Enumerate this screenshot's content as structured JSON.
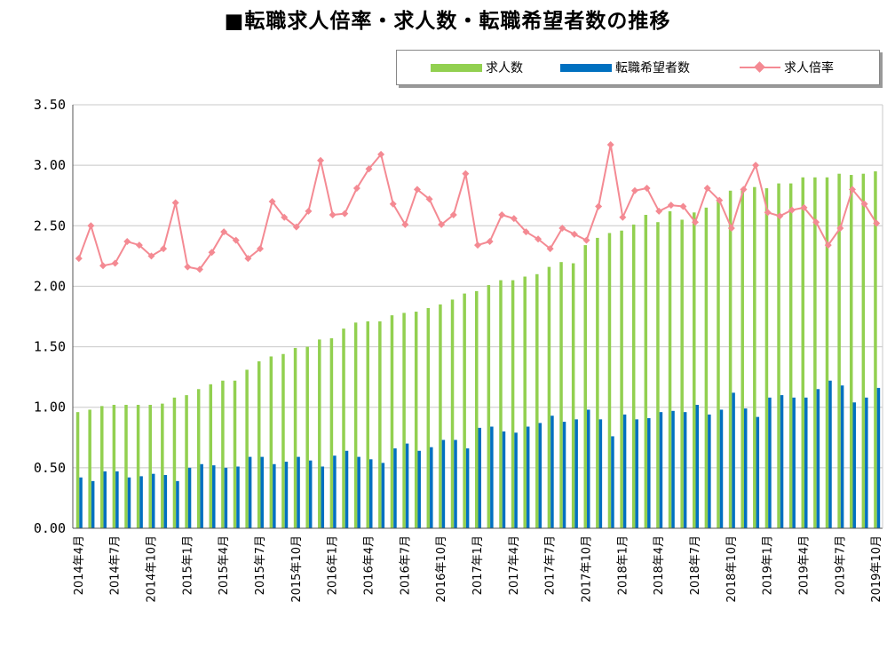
{
  "colors": {
    "job_openings": "#92d050",
    "job_seekers": "#0070c0",
    "ratio": "#f48a93"
  },
  "chart_data": {
    "type": "bar",
    "title": "■転職求人倍率・求人数・転職希望者数の推移",
    "xlabel": "",
    "ylabel": "",
    "ylim": [
      0,
      3.5
    ],
    "yticks": [
      "0.00",
      "0.50",
      "1.00",
      "1.50",
      "2.00",
      "2.50",
      "3.00",
      "3.50"
    ],
    "grid": true,
    "legend_position": "top-right",
    "categories": [
      "2014年4月",
      "2014年5月",
      "2014年6月",
      "2014年7月",
      "2014年8月",
      "2014年9月",
      "2014年10月",
      "2014年11月",
      "2014年12月",
      "2015年1月",
      "2015年2月",
      "2015年3月",
      "2015年4月",
      "2015年5月",
      "2015年6月",
      "2015年7月",
      "2015年8月",
      "2015年9月",
      "2015年10月",
      "2015年11月",
      "2015年12月",
      "2016年1月",
      "2016年2月",
      "2016年3月",
      "2016年4月",
      "2016年5月",
      "2016年6月",
      "2016年7月",
      "2016年8月",
      "2016年9月",
      "2016年10月",
      "2016年11月",
      "2016年12月",
      "2017年1月",
      "2017年2月",
      "2017年3月",
      "2017年4月",
      "2017年5月",
      "2017年6月",
      "2017年7月",
      "2017年8月",
      "2017年9月",
      "2017年10月",
      "2017年11月",
      "2017年12月",
      "2018年1月",
      "2018年2月",
      "2018年3月",
      "2018年4月",
      "2018年5月",
      "2018年6月",
      "2018年7月",
      "2018年8月",
      "2018年9月",
      "2018年10月",
      "2018年11月",
      "2018年12月",
      "2019年1月",
      "2019年2月",
      "2019年3月",
      "2019年4月",
      "2019年5月",
      "2019年6月",
      "2019年7月",
      "2019年8月",
      "2019年9月",
      "2019年10月"
    ],
    "tick_labels": [
      "2014年4月",
      "2014年7月",
      "2014年10月",
      "2015年1月",
      "2015年4月",
      "2015年7月",
      "2015年10月",
      "2016年1月",
      "2016年4月",
      "2016年7月",
      "2016年10月",
      "2017年1月",
      "2017年4月",
      "2017年7月",
      "2017年10月",
      "2018年1月",
      "2018年4月",
      "2018年7月",
      "2018年10月",
      "2019年1月",
      "2019年4月",
      "2019年7月",
      "2019年10月"
    ],
    "series": [
      {
        "name": "求人数",
        "type": "bar",
        "values": [
          0.96,
          0.98,
          1.01,
          1.02,
          1.02,
          1.02,
          1.02,
          1.03,
          1.08,
          1.1,
          1.15,
          1.19,
          1.22,
          1.22,
          1.31,
          1.38,
          1.42,
          1.44,
          1.49,
          1.5,
          1.56,
          1.57,
          1.65,
          1.7,
          1.71,
          1.71,
          1.76,
          1.78,
          1.79,
          1.82,
          1.85,
          1.89,
          1.94,
          1.96,
          2.01,
          2.05,
          2.05,
          2.08,
          2.1,
          2.16,
          2.2,
          2.19,
          2.34,
          2.4,
          2.44,
          2.46,
          2.51,
          2.59,
          2.53,
          2.62,
          2.55,
          2.61,
          2.65,
          2.72,
          2.79,
          2.8,
          2.82,
          2.81,
          2.85,
          2.85,
          2.9,
          2.9,
          2.9,
          2.93,
          2.92,
          2.93,
          2.95
        ]
      },
      {
        "name": "転職希望者数",
        "type": "bar",
        "values": [
          0.42,
          0.39,
          0.47,
          0.47,
          0.42,
          0.43,
          0.45,
          0.44,
          0.39,
          0.5,
          0.53,
          0.52,
          0.5,
          0.51,
          0.59,
          0.59,
          0.53,
          0.55,
          0.59,
          0.56,
          0.51,
          0.6,
          0.64,
          0.59,
          0.57,
          0.54,
          0.66,
          0.7,
          0.64,
          0.67,
          0.73,
          0.73,
          0.66,
          0.83,
          0.84,
          0.8,
          0.79,
          0.84,
          0.87,
          0.93,
          0.88,
          0.9,
          0.98,
          0.9,
          0.76,
          0.94,
          0.9,
          0.91,
          0.96,
          0.97,
          0.96,
          1.02,
          0.94,
          0.98,
          1.12,
          0.99,
          0.92,
          1.08,
          1.1,
          1.08,
          1.08,
          1.15,
          1.22,
          1.18,
          1.04,
          1.08,
          1.16
        ]
      },
      {
        "name": "求人倍率",
        "type": "line",
        "values": [
          2.23,
          2.5,
          2.17,
          2.19,
          2.37,
          2.34,
          2.25,
          2.31,
          2.69,
          2.16,
          2.14,
          2.28,
          2.45,
          2.38,
          2.23,
          2.31,
          2.7,
          2.57,
          2.49,
          2.62,
          3.04,
          2.59,
          2.6,
          2.81,
          2.97,
          3.09,
          2.68,
          2.51,
          2.8,
          2.72,
          2.51,
          2.59,
          2.93,
          2.34,
          2.37,
          2.59,
          2.56,
          2.45,
          2.39,
          2.31,
          2.48,
          2.43,
          2.38,
          2.66,
          3.17,
          2.57,
          2.79,
          2.81,
          2.62,
          2.67,
          2.66,
          2.53,
          2.81,
          2.71,
          2.48,
          2.8,
          3.0,
          2.61,
          2.58,
          2.63,
          2.65,
          2.53,
          2.34,
          2.48,
          2.8,
          2.68,
          2.52
        ]
      }
    ]
  }
}
